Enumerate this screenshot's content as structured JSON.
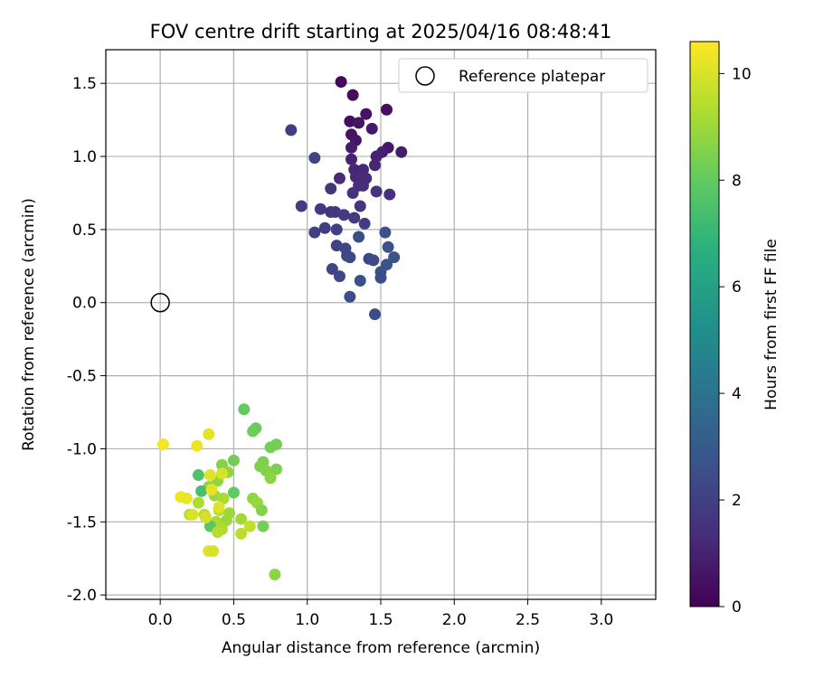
{
  "chart_data": {
    "type": "scatter",
    "title": "FOV centre drift starting at 2025/04/16 08:48:41",
    "xlabel": "Angular distance from reference (arcmin)",
    "ylabel": "Rotation from reference (arcmin)",
    "xlim": [
      -0.37,
      3.37
    ],
    "ylim": [
      -2.03,
      1.73
    ],
    "xticks": [
      "0.0",
      "0.5",
      "1.0",
      "1.5",
      "2.0",
      "2.5",
      "3.0"
    ],
    "yticks": [
      "-2.0",
      "-1.5",
      "-1.0",
      "-0.5",
      "0.0",
      "0.5",
      "1.0",
      "1.5"
    ],
    "grid": true,
    "legend": {
      "placement": "top-right",
      "entries": [
        "Reference platepar"
      ]
    },
    "reference_point": {
      "x": 0.0,
      "y": 0.0
    },
    "colorbar": {
      "label": "Hours from first FF file",
      "range": [
        0,
        10.6
      ],
      "ticks": [
        "0",
        "2",
        "4",
        "6",
        "8",
        "10"
      ],
      "colormap": "viridis"
    },
    "points": [
      {
        "x": 1.23,
        "y": 1.51,
        "h": 0.2
      },
      {
        "x": 1.31,
        "y": 1.42,
        "h": 0.3
      },
      {
        "x": 1.54,
        "y": 1.32,
        "h": 0.4
      },
      {
        "x": 1.4,
        "y": 1.29,
        "h": 0.5
      },
      {
        "x": 1.29,
        "y": 1.24,
        "h": 0.4
      },
      {
        "x": 1.35,
        "y": 1.23,
        "h": 0.6
      },
      {
        "x": 1.44,
        "y": 1.19,
        "h": 0.7
      },
      {
        "x": 1.3,
        "y": 1.15,
        "h": 0.5
      },
      {
        "x": 1.33,
        "y": 1.11,
        "h": 0.6
      },
      {
        "x": 1.3,
        "y": 1.06,
        "h": 0.8
      },
      {
        "x": 1.55,
        "y": 1.06,
        "h": 0.7
      },
      {
        "x": 1.51,
        "y": 1.03,
        "h": 0.9
      },
      {
        "x": 1.64,
        "y": 1.03,
        "h": 0.8
      },
      {
        "x": 1.47,
        "y": 1.0,
        "h": 1.0
      },
      {
        "x": 1.3,
        "y": 0.98,
        "h": 1.0
      },
      {
        "x": 1.46,
        "y": 0.94,
        "h": 1.1
      },
      {
        "x": 1.32,
        "y": 0.91,
        "h": 1.1
      },
      {
        "x": 1.38,
        "y": 0.91,
        "h": 1.2
      },
      {
        "x": 1.33,
        "y": 0.86,
        "h": 1.2
      },
      {
        "x": 1.22,
        "y": 0.85,
        "h": 1.3
      },
      {
        "x": 1.4,
        "y": 0.85,
        "h": 1.3
      },
      {
        "x": 1.38,
        "y": 0.8,
        "h": 1.4
      },
      {
        "x": 1.35,
        "y": 0.8,
        "h": 1.4
      },
      {
        "x": 1.47,
        "y": 0.76,
        "h": 1.5
      },
      {
        "x": 1.31,
        "y": 0.75,
        "h": 1.5
      },
      {
        "x": 1.56,
        "y": 0.74,
        "h": 1.4
      },
      {
        "x": 1.16,
        "y": 0.78,
        "h": 1.6
      },
      {
        "x": 0.89,
        "y": 1.18,
        "h": 1.9
      },
      {
        "x": 1.05,
        "y": 0.99,
        "h": 2.1
      },
      {
        "x": 0.96,
        "y": 0.66,
        "h": 1.9
      },
      {
        "x": 1.09,
        "y": 0.64,
        "h": 1.8
      },
      {
        "x": 1.16,
        "y": 0.62,
        "h": 1.6
      },
      {
        "x": 1.19,
        "y": 0.62,
        "h": 1.7
      },
      {
        "x": 1.25,
        "y": 0.6,
        "h": 1.8
      },
      {
        "x": 1.32,
        "y": 0.58,
        "h": 1.8
      },
      {
        "x": 1.36,
        "y": 0.66,
        "h": 1.7
      },
      {
        "x": 1.39,
        "y": 0.54,
        "h": 1.9
      },
      {
        "x": 1.12,
        "y": 0.51,
        "h": 1.9
      },
      {
        "x": 1.2,
        "y": 0.5,
        "h": 2.0
      },
      {
        "x": 1.05,
        "y": 0.48,
        "h": 2.0
      },
      {
        "x": 1.53,
        "y": 0.48,
        "h": 2.6
      },
      {
        "x": 1.35,
        "y": 0.45,
        "h": 2.4
      },
      {
        "x": 1.2,
        "y": 0.39,
        "h": 2.1
      },
      {
        "x": 1.26,
        "y": 0.37,
        "h": 2.2
      },
      {
        "x": 1.55,
        "y": 0.38,
        "h": 2.7
      },
      {
        "x": 1.27,
        "y": 0.32,
        "h": 2.2
      },
      {
        "x": 1.29,
        "y": 0.31,
        "h": 2.3
      },
      {
        "x": 1.42,
        "y": 0.3,
        "h": 2.3
      },
      {
        "x": 1.45,
        "y": 0.29,
        "h": 2.4
      },
      {
        "x": 1.59,
        "y": 0.31,
        "h": 2.7
      },
      {
        "x": 1.54,
        "y": 0.26,
        "h": 2.7
      },
      {
        "x": 1.5,
        "y": 0.21,
        "h": 2.6
      },
      {
        "x": 1.17,
        "y": 0.23,
        "h": 2.2
      },
      {
        "x": 1.22,
        "y": 0.18,
        "h": 2.3
      },
      {
        "x": 1.5,
        "y": 0.17,
        "h": 2.5
      },
      {
        "x": 1.36,
        "y": 0.15,
        "h": 2.6
      },
      {
        "x": 1.29,
        "y": 0.04,
        "h": 2.5
      },
      {
        "x": 1.46,
        "y": -0.08,
        "h": 2.4
      },
      {
        "x": 0.57,
        "y": -0.73,
        "h": 8.0
      },
      {
        "x": 0.65,
        "y": -0.86,
        "h": 8.1
      },
      {
        "x": 0.63,
        "y": -0.88,
        "h": 8.2
      },
      {
        "x": 0.79,
        "y": -0.97,
        "h": 8.4
      },
      {
        "x": 0.75,
        "y": -0.99,
        "h": 8.3
      },
      {
        "x": 0.5,
        "y": -1.08,
        "h": 8.3
      },
      {
        "x": 0.42,
        "y": -1.11,
        "h": 8.6
      },
      {
        "x": 0.7,
        "y": -1.09,
        "h": 8.4
      },
      {
        "x": 0.68,
        "y": -1.12,
        "h": 8.5
      },
      {
        "x": 0.79,
        "y": -1.14,
        "h": 8.5
      },
      {
        "x": 0.72,
        "y": -1.15,
        "h": 8.6
      },
      {
        "x": 0.26,
        "y": -1.18,
        "h": 7.6
      },
      {
        "x": 0.46,
        "y": -1.16,
        "h": 8.8
      },
      {
        "x": 0.75,
        "y": -1.2,
        "h": 8.7
      },
      {
        "x": 0.39,
        "y": -1.22,
        "h": 8.8
      },
      {
        "x": 0.33,
        "y": -1.26,
        "h": 8.9
      },
      {
        "x": 0.28,
        "y": -1.29,
        "h": 7.4
      },
      {
        "x": 0.5,
        "y": -1.3,
        "h": 8.0
      },
      {
        "x": 0.37,
        "y": -1.32,
        "h": 9.0
      },
      {
        "x": 0.43,
        "y": -1.34,
        "h": 9.2
      },
      {
        "x": 0.63,
        "y": -1.34,
        "h": 8.8
      },
      {
        "x": 0.66,
        "y": -1.37,
        "h": 8.9
      },
      {
        "x": 0.26,
        "y": -1.37,
        "h": 9.3
      },
      {
        "x": 0.69,
        "y": -1.42,
        "h": 8.6
      },
      {
        "x": 0.4,
        "y": -1.42,
        "h": 9.4
      },
      {
        "x": 0.47,
        "y": -1.44,
        "h": 9.0
      },
      {
        "x": 0.3,
        "y": -1.45,
        "h": 9.5
      },
      {
        "x": 0.2,
        "y": -1.45,
        "h": 9.4
      },
      {
        "x": 0.55,
        "y": -1.48,
        "h": 9.1
      },
      {
        "x": 0.38,
        "y": -1.5,
        "h": 9.2
      },
      {
        "x": 0.45,
        "y": -1.49,
        "h": 9.0
      },
      {
        "x": 0.34,
        "y": -1.53,
        "h": 7.8
      },
      {
        "x": 0.7,
        "y": -1.53,
        "h": 8.3
      },
      {
        "x": 0.61,
        "y": -1.53,
        "h": 9.6
      },
      {
        "x": 0.42,
        "y": -1.55,
        "h": 9.3
      },
      {
        "x": 0.39,
        "y": -1.57,
        "h": 9.4
      },
      {
        "x": 0.55,
        "y": -1.58,
        "h": 9.5
      },
      {
        "x": 0.78,
        "y": -1.86,
        "h": 8.7
      },
      {
        "x": 0.33,
        "y": -1.7,
        "h": 10.1
      },
      {
        "x": 0.36,
        "y": -1.7,
        "h": 10.0
      },
      {
        "x": 0.02,
        "y": -0.97,
        "h": 10.5
      },
      {
        "x": 0.25,
        "y": -0.98,
        "h": 10.3
      },
      {
        "x": 0.33,
        "y": -0.9,
        "h": 10.2
      },
      {
        "x": 0.14,
        "y": -1.33,
        "h": 10.4
      },
      {
        "x": 0.18,
        "y": -1.34,
        "h": 10.3
      },
      {
        "x": 0.35,
        "y": -1.28,
        "h": 10.2
      },
      {
        "x": 0.34,
        "y": -1.18,
        "h": 10.1
      },
      {
        "x": 0.42,
        "y": -1.17,
        "h": 10.0
      },
      {
        "x": 0.22,
        "y": -1.45,
        "h": 10.0
      },
      {
        "x": 0.4,
        "y": -1.4,
        "h": 10.1
      },
      {
        "x": 0.31,
        "y": -1.47,
        "h": 9.9
      }
    ]
  }
}
